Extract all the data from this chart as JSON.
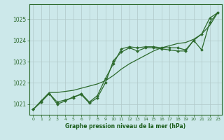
{
  "bg_color": "#cce8ea",
  "line_color": "#2d6a2d",
  "grid_color": "#b0c8c8",
  "xlabel": "Graphe pression niveau de la mer (hPa)",
  "xlabel_color": "#1a5c1a",
  "yticks": [
    1021,
    1022,
    1023,
    1024,
    1025
  ],
  "xticks": [
    0,
    1,
    2,
    3,
    4,
    5,
    6,
    7,
    8,
    9,
    10,
    11,
    12,
    13,
    14,
    15,
    16,
    17,
    18,
    19,
    20,
    21,
    22,
    23
  ],
  "xlim": [
    -0.5,
    23.5
  ],
  "ylim": [
    1020.5,
    1025.7
  ],
  "series1_x": [
    0,
    1,
    2,
    3,
    4,
    5,
    6,
    7,
    8,
    9,
    10,
    11,
    12,
    13,
    14,
    15,
    16,
    17,
    18,
    19,
    20,
    21,
    22,
    23
  ],
  "series1_y": [
    1020.75,
    1021.15,
    1021.55,
    1021.55,
    1021.6,
    1021.65,
    1021.75,
    1021.85,
    1021.95,
    1022.1,
    1022.35,
    1022.65,
    1022.9,
    1023.1,
    1023.3,
    1023.5,
    1023.65,
    1023.75,
    1023.85,
    1023.9,
    1024.05,
    1024.3,
    1024.7,
    1025.3
  ],
  "series2_x": [
    0,
    1,
    2,
    3,
    4,
    5,
    6,
    7,
    8,
    9,
    10,
    11,
    12,
    13,
    14,
    15,
    16,
    17,
    18,
    19,
    20,
    21,
    22,
    23
  ],
  "series2_y": [
    1020.75,
    1021.15,
    1021.5,
    1021.1,
    1021.2,
    1021.3,
    1021.5,
    1021.1,
    1021.4,
    1022.2,
    1022.9,
    1023.6,
    1023.7,
    1023.65,
    1023.7,
    1023.7,
    1023.65,
    1023.65,
    1023.65,
    1023.55,
    1024.0,
    1024.3,
    1025.05,
    1025.3
  ],
  "series3_x": [
    0,
    1,
    2,
    3,
    4,
    5,
    6,
    7,
    8,
    9,
    10,
    11,
    12,
    13,
    14,
    15,
    16,
    17,
    18,
    19,
    20,
    21,
    22,
    23
  ],
  "series3_y": [
    1020.75,
    1021.1,
    1021.5,
    1021.0,
    1021.15,
    1021.35,
    1021.45,
    1021.05,
    1021.3,
    1022.0,
    1023.05,
    1023.45,
    1023.65,
    1023.5,
    1023.65,
    1023.65,
    1023.6,
    1023.55,
    1023.5,
    1023.5,
    1024.0,
    1023.55,
    1024.85,
    1025.3
  ]
}
